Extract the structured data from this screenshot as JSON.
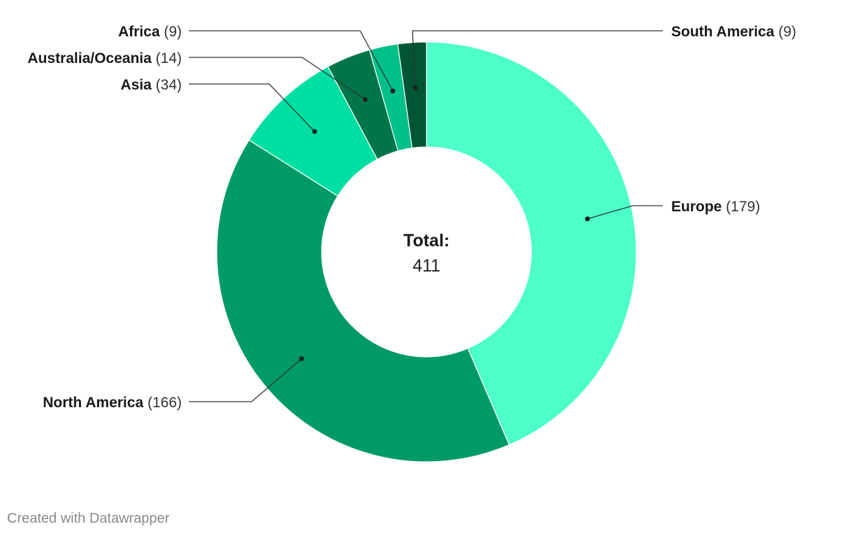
{
  "chart_data": {
    "type": "pie",
    "variant": "donut",
    "center_label": "Total:",
    "center_value": "411",
    "slices": [
      {
        "label": "Europe",
        "value": 179,
        "color": "#4dffc8"
      },
      {
        "label": "North America",
        "value": 166,
        "color": "#009b64"
      },
      {
        "label": "Asia",
        "value": 34,
        "color": "#00dfa2"
      },
      {
        "label": "Australia/Oceania",
        "value": 14,
        "color": "#007648"
      },
      {
        "label": "Africa",
        "value": 9,
        "color": "#00c089"
      },
      {
        "label": "South America",
        "value": 9,
        "color": "#005634"
      }
    ],
    "legend": "none"
  },
  "credit": "Created with Datawrapper"
}
